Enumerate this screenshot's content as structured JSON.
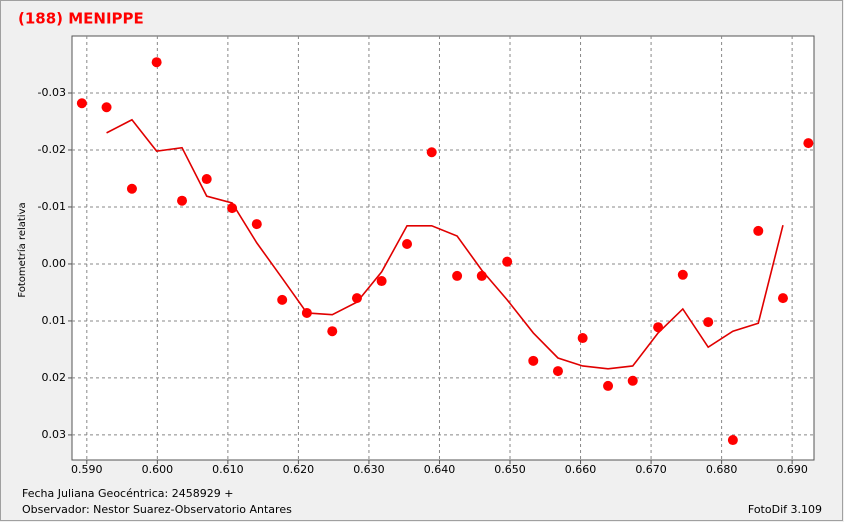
{
  "chart_data": {
    "type": "scatter",
    "title": "(188) MENIPPE",
    "y_label": "Fotometría relativa",
    "x_label": "Fecha Juliana Geocéntrica: 2458929 +",
    "observer": "Observador: Nestor Suarez-Observatorio Antares",
    "software": "FotoDif 3.109",
    "xlim": [
      0.5879,
      0.6931
    ],
    "ylim": [
      -0.04,
      0.0344
    ],
    "y_inverted": true,
    "grid": true,
    "xticks": [
      {
        "value": 0.59,
        "label": "0.590"
      },
      {
        "value": 0.6,
        "label": "0.600"
      },
      {
        "value": 0.61,
        "label": "0.610"
      },
      {
        "value": 0.62,
        "label": "0.620"
      },
      {
        "value": 0.63,
        "label": "0.630"
      },
      {
        "value": 0.64,
        "label": "0.640"
      },
      {
        "value": 0.65,
        "label": "0.650"
      },
      {
        "value": 0.66,
        "label": "0.660"
      },
      {
        "value": 0.67,
        "label": "0.670"
      },
      {
        "value": 0.68,
        "label": "0.680"
      },
      {
        "value": 0.69,
        "label": "0.690"
      }
    ],
    "yticks": [
      {
        "value": -0.03,
        "label": "-0.03"
      },
      {
        "value": -0.02,
        "label": "-0.02"
      },
      {
        "value": -0.01,
        "label": "-0.01"
      },
      {
        "value": 0,
        "label": "0.00"
      },
      {
        "value": 0.01,
        "label": "0.01"
      },
      {
        "value": 0.02,
        "label": "0.02"
      },
      {
        "value": 0.03,
        "label": "0.03"
      }
    ],
    "points": {
      "color": "#ff0000",
      "x": [
        0.5893,
        0.5928,
        0.5964,
        0.5999,
        0.6035,
        0.607,
        0.6106,
        0.6141,
        0.6177,
        0.6212,
        0.6248,
        0.6283,
        0.6318,
        0.6354,
        0.6389,
        0.6425,
        0.646,
        0.6496,
        0.6533,
        0.6568,
        0.6603,
        0.6639,
        0.6674,
        0.671,
        0.6745,
        0.6781,
        0.6816,
        0.6852,
        0.6887,
        0.6923
      ],
      "y": [
        -0.0282,
        -0.0275,
        -0.0132,
        -0.0354,
        -0.0111,
        -0.0149,
        -0.0098,
        -0.007,
        0.0063,
        0.0086,
        0.0118,
        0.006,
        0.003,
        -0.0035,
        -0.0196,
        0.0021,
        0.0021,
        -0.0004,
        0.017,
        0.0188,
        0.013,
        0.0214,
        0.0205,
        0.0111,
        0.0019,
        0.0102,
        0.0309,
        -0.0058,
        0.006,
        -0.0212
      ]
    },
    "curve": {
      "color": "#e00000",
      "x": [
        0.5928,
        0.5964,
        0.5999,
        0.6035,
        0.607,
        0.6106,
        0.6141,
        0.6177,
        0.6212,
        0.6248,
        0.6283,
        0.6318,
        0.6354,
        0.6389,
        0.6425,
        0.646,
        0.6496,
        0.6533,
        0.6568,
        0.6603,
        0.6639,
        0.6674,
        0.671,
        0.6745,
        0.6781,
        0.6816,
        0.6852,
        0.6887
      ],
      "y": [
        -0.023,
        -0.0253,
        -0.0198,
        -0.0204,
        -0.0119,
        -0.0107,
        -0.0037,
        0.0025,
        0.0086,
        0.0089,
        0.0067,
        0.0014,
        -0.0067,
        -0.0067,
        -0.0049,
        0.0011,
        0.0063,
        0.0121,
        0.0165,
        0.0179,
        0.0184,
        0.0179,
        0.0121,
        0.0079,
        0.0146,
        0.0118,
        0.0104,
        -0.0068
      ]
    }
  }
}
